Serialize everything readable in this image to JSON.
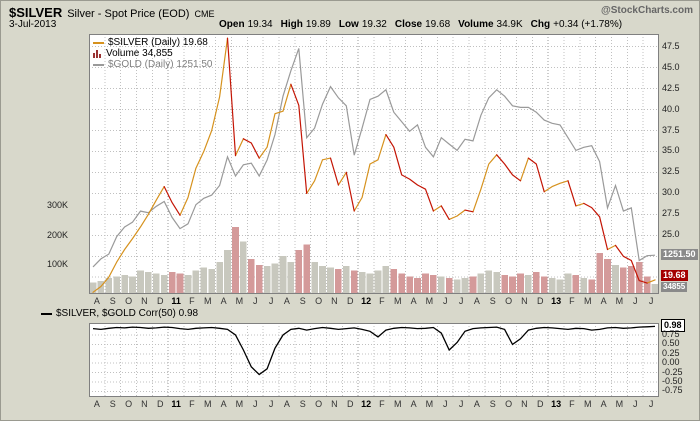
{
  "header": {
    "symbol": "$SILVER",
    "name": "Silver - Spot Price (EOD)",
    "exchange": "CME",
    "watermark": "@StockCharts.com",
    "date": "3-Jul-2013",
    "quote": [
      {
        "label": "Open",
        "value": "19.34"
      },
      {
        "label": "High",
        "value": "19.89"
      },
      {
        "label": "Low",
        "value": "19.32"
      },
      {
        "label": "Close",
        "value": "19.68"
      },
      {
        "label": "Volume",
        "value": "34.9K"
      },
      {
        "label": "Chg",
        "value": "+0.34 (+1.78%)"
      }
    ]
  },
  "legend": {
    "silver": "$SILVER (Daily) 19.68",
    "volume": "Volume 34,855",
    "gold": "$GOLD (Daily) 1251.50"
  },
  "lower_legend": "$SILVER, $GOLD Corr(50) 0.98",
  "tags": {
    "gold": "1251.50",
    "silver": "19.68",
    "volume": "34855",
    "corr": "0.98"
  },
  "colors": {
    "background": "#d8d8cb",
    "plot_bg": "#ffffff",
    "grid": "#c0c0c0",
    "grid_year": "#989898",
    "plot_border": "#808080",
    "silver_up": "#d6921e",
    "silver_down": "#c41505",
    "gold": "#9a9a9a",
    "volume_up": "#c8c8be",
    "volume_down": "#d49a9a",
    "volume_icon": "#993333",
    "corr_line": "#000000",
    "tag_gold_bg": "#8a8a8a",
    "tag_silver_bg": "#a50000",
    "tag_volume_bg": "#8a8a8a",
    "corr_tag_bg": "#ffffff",
    "corr_tag_border": "#000000",
    "gold_legend_text": "#808080",
    "muted_text": "#666666"
  },
  "chart_data": [
    {
      "type": "line",
      "title": "$SILVER daily with $GOLD overlay and volume",
      "legend_position": "top-left",
      "grid": true,
      "x_labels": [
        "A",
        "S",
        "O",
        "N",
        "D",
        "11",
        "F",
        "M",
        "A",
        "M",
        "J",
        "J",
        "A",
        "S",
        "O",
        "N",
        "D",
        "12",
        "F",
        "M",
        "A",
        "M",
        "J",
        "J",
        "A",
        "S",
        "O",
        "N",
        "D",
        "13",
        "F",
        "M",
        "A",
        "M",
        "J",
        "J"
      ],
      "points_per_label": 2,
      "y_ticks_right": [
        "47.5",
        "45.0",
        "42.5",
        "40.0",
        "37.5",
        "35.0",
        "32.5",
        "30.0",
        "27.5",
        "25.0",
        "22.5",
        "20.0"
      ],
      "y_ticks_left_volume": [
        "300K",
        "200K",
        "100K"
      ],
      "series": [
        {
          "name": "$SILVER (Daily)",
          "last": 19.68,
          "ylim": [
            18.0,
            49.0
          ],
          "values": [
            18.2,
            18.9,
            20.0,
            21.8,
            23.3,
            24.6,
            26.0,
            27.5,
            29.2,
            30.8,
            28.9,
            27.4,
            29.5,
            33.0,
            35.0,
            37.5,
            41.5,
            48.5,
            34.5,
            36.5,
            36.0,
            34.2,
            35.5,
            39.5,
            39.8,
            43.0,
            40.5,
            30.0,
            31.5,
            34.0,
            34.2,
            31.0,
            32.5,
            27.9,
            29.5,
            33.5,
            34.0,
            37.0,
            35.5,
            32.2,
            31.7,
            31.0,
            30.5,
            27.9,
            28.5,
            26.9,
            27.3,
            28.0,
            27.8,
            30.5,
            33.5,
            34.6,
            33.5,
            32.2,
            31.5,
            34.2,
            33.5,
            30.2,
            30.8,
            31.2,
            31.5,
            28.5,
            28.8,
            28.3,
            27.2,
            23.3,
            23.8,
            22.5,
            22.0,
            19.6,
            19.3,
            19.68
          ]
        },
        {
          "name": "$GOLD (Daily)",
          "last": 1251.5,
          "ylim": [
            1130,
            1945
          ],
          "values": [
            1215,
            1240,
            1255,
            1310,
            1340,
            1355,
            1390,
            1385,
            1405,
            1420,
            1370,
            1335,
            1350,
            1410,
            1430,
            1440,
            1470,
            1560,
            1500,
            1535,
            1540,
            1500,
            1550,
            1630,
            1750,
            1830,
            1900,
            1620,
            1650,
            1725,
            1780,
            1745,
            1720,
            1565,
            1650,
            1740,
            1750,
            1770,
            1700,
            1670,
            1640,
            1660,
            1590,
            1560,
            1620,
            1600,
            1580,
            1615,
            1610,
            1690,
            1745,
            1770,
            1750,
            1720,
            1715,
            1715,
            1700,
            1675,
            1665,
            1660,
            1620,
            1580,
            1590,
            1595,
            1545,
            1400,
            1470,
            1390,
            1400,
            1235,
            1250,
            1251.5
          ]
        },
        {
          "name": "Volume",
          "unit": "K",
          "last": 34.9,
          "ylim": [
            0,
            890
          ],
          "values": [
            40,
            45,
            55,
            60,
            65,
            60,
            80,
            75,
            70,
            65,
            75,
            70,
            65,
            80,
            90,
            85,
            110,
            150,
            230,
            180,
            120,
            100,
            95,
            105,
            130,
            110,
            150,
            170,
            110,
            95,
            90,
            85,
            95,
            80,
            75,
            70,
            80,
            95,
            85,
            70,
            60,
            55,
            70,
            65,
            60,
            55,
            50,
            55,
            60,
            70,
            80,
            75,
            65,
            60,
            70,
            65,
            75,
            60,
            55,
            50,
            70,
            65,
            55,
            50,
            140,
            120,
            100,
            90,
            95,
            110,
            60,
            34.9
          ]
        }
      ]
    },
    {
      "type": "line",
      "title": "$SILVER, $GOLD Corr(50)",
      "grid": true,
      "x_labels": [
        "A",
        "S",
        "O",
        "N",
        "D",
        "11",
        "F",
        "M",
        "A",
        "M",
        "J",
        "J",
        "A",
        "S",
        "O",
        "N",
        "D",
        "12",
        "F",
        "M",
        "A",
        "M",
        "J",
        "J",
        "A",
        "S",
        "O",
        "N",
        "D",
        "13",
        "F",
        "M",
        "A",
        "M",
        "J",
        "J"
      ],
      "points_per_label": 2,
      "y_ticks_right": [
        "0.75",
        "0.50",
        "0.25",
        "0.00",
        "-0.25",
        "-0.50",
        "-0.75"
      ],
      "series": [
        {
          "name": "Corr(50)",
          "last": 0.98,
          "ylim": [
            -0.9,
            1.07
          ],
          "values": [
            0.92,
            0.9,
            0.93,
            0.95,
            0.94,
            0.96,
            0.95,
            0.93,
            0.94,
            0.96,
            0.95,
            0.92,
            0.9,
            0.93,
            0.94,
            0.95,
            0.93,
            0.9,
            0.75,
            0.35,
            -0.1,
            -0.3,
            -0.15,
            0.4,
            0.75,
            0.9,
            0.93,
            0.88,
            0.92,
            0.95,
            0.93,
            0.9,
            0.92,
            0.94,
            0.9,
            0.85,
            0.7,
            0.88,
            0.93,
            0.95,
            0.94,
            0.92,
            0.93,
            0.95,
            0.8,
            0.35,
            0.55,
            0.85,
            0.92,
            0.94,
            0.95,
            0.96,
            0.9,
            0.5,
            0.65,
            0.88,
            0.93,
            0.95,
            0.94,
            0.92,
            0.9,
            0.93,
            0.92,
            0.88,
            0.9,
            0.94,
            0.95,
            0.93,
            0.94,
            0.96,
            0.97,
            0.98
          ]
        }
      ]
    }
  ]
}
